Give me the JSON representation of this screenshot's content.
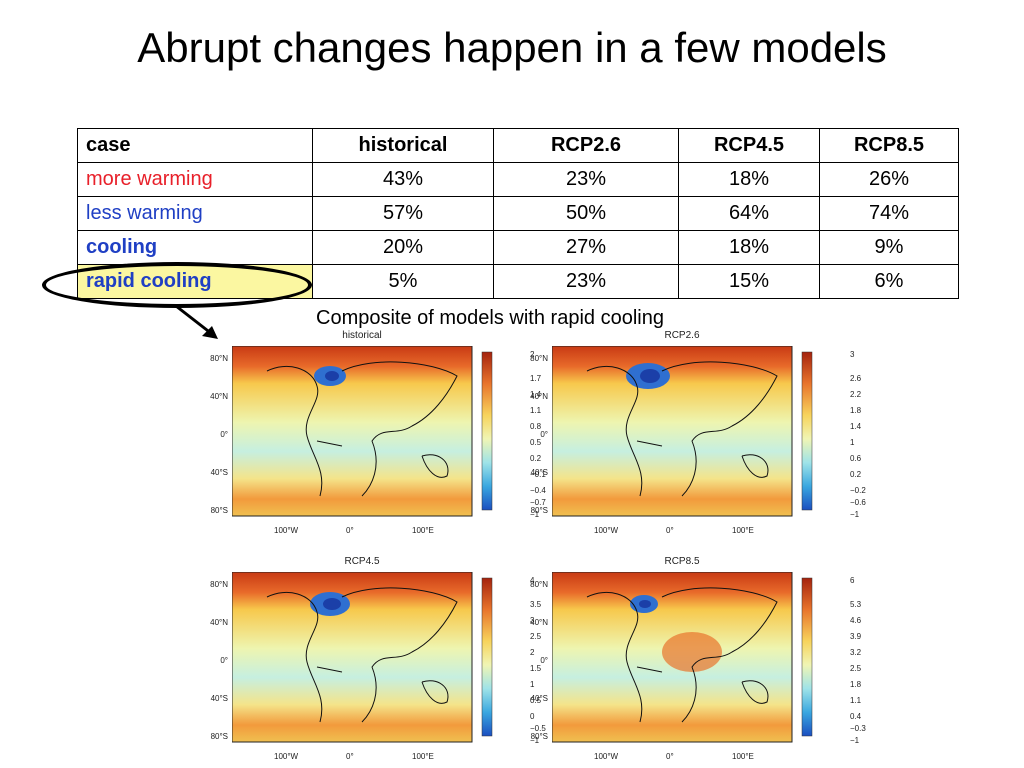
{
  "slide": {
    "title": "Abrupt changes happen in a few models",
    "caption": "Composite of models with rapid cooling"
  },
  "table": {
    "headers": [
      "case",
      "historical",
      "RCP2.6",
      "RCP4.5",
      "RCP8.5"
    ],
    "rows": [
      {
        "label": "more warming",
        "values": [
          "43%",
          "23%",
          "18%",
          "26%"
        ]
      },
      {
        "label": "less warming",
        "values": [
          "57%",
          "50%",
          "64%",
          "74%"
        ]
      },
      {
        "label": "cooling",
        "values": [
          "20%",
          "27%",
          "18%",
          "9%"
        ]
      },
      {
        "label": "rapid cooling",
        "values": [
          "5%",
          "23%",
          "15%",
          "6%"
        ]
      }
    ],
    "colors": {
      "more_warming": "#e8202a",
      "less_warming": "#1f3fc4",
      "highlight": "#fbf7a1"
    }
  },
  "maps": {
    "lat_labels": [
      "80°N",
      "40°N",
      "0°",
      "40°S",
      "80°S"
    ],
    "lon_labels": [
      "100°W",
      "0°",
      "100°E"
    ],
    "panels": [
      {
        "title": "historical",
        "colorbar": [
          "2",
          "1.7",
          "1.4",
          "1.1",
          "0.8",
          "0.5",
          "0.2",
          "−0.1",
          "−0.4",
          "−0.7",
          "−1"
        ]
      },
      {
        "title": "RCP2.6",
        "colorbar": [
          "3",
          "2.6",
          "2.2",
          "1.8",
          "1.4",
          "1",
          "0.6",
          "0.2",
          "−0.2",
          "−0.6",
          "−1"
        ]
      },
      {
        "title": "RCP4.5",
        "colorbar": [
          "4",
          "3.5",
          "3",
          "2.5",
          "2",
          "1.5",
          "1",
          "0.5",
          "0",
          "−0.5",
          "−1"
        ]
      },
      {
        "title": "RCP8.5",
        "colorbar": [
          "6",
          "5.3",
          "4.6",
          "3.9",
          "3.2",
          "2.5",
          "1.8",
          "1.1",
          "0.4",
          "−0.3",
          "−1"
        ]
      }
    ]
  }
}
